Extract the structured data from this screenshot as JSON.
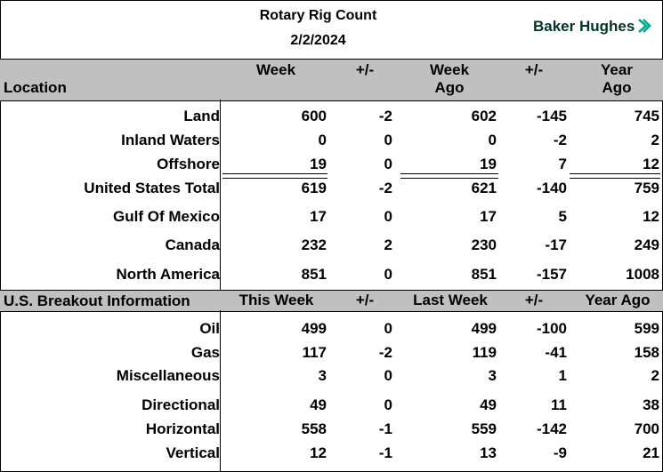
{
  "report": {
    "title": "Rotary Rig Count",
    "date": "2/2/2024",
    "brand": "Baker Hughes"
  },
  "location_section": {
    "headers": {
      "location": "Location",
      "week": "Week",
      "change1": "+/-",
      "week_ago_l1": "Week",
      "week_ago_l2": "Ago",
      "change2": "+/-",
      "year_ago_l1": "Year",
      "year_ago_l2": "Ago"
    },
    "rows": [
      {
        "label": "Land",
        "week": "600",
        "chg1": "-2",
        "week_ago": "602",
        "chg2": "-145",
        "year_ago": "745"
      },
      {
        "label": "Inland Waters",
        "week": "0",
        "chg1": "0",
        "week_ago": "0",
        "chg2": "-2",
        "year_ago": "2"
      },
      {
        "label": "Offshore",
        "week": "19",
        "chg1": "0",
        "week_ago": "19",
        "chg2": "7",
        "year_ago": "12"
      },
      {
        "label": "United States Total",
        "week": "619",
        "chg1": "-2",
        "week_ago": "621",
        "chg2": "-140",
        "year_ago": "759"
      },
      {
        "label": "Gulf Of Mexico",
        "week": "17",
        "chg1": "0",
        "week_ago": "17",
        "chg2": "5",
        "year_ago": "12"
      },
      {
        "label": "Canada",
        "week": "232",
        "chg1": "2",
        "week_ago": "230",
        "chg2": "-17",
        "year_ago": "249"
      },
      {
        "label": "North America",
        "week": "851",
        "chg1": "0",
        "week_ago": "851",
        "chg2": "-157",
        "year_ago": "1008"
      }
    ]
  },
  "breakout_section": {
    "headers": {
      "title": "U.S. Breakout Information",
      "this_week": "This Week",
      "change1": "+/-",
      "last_week": "Last Week",
      "change2": "+/-",
      "year_ago": "Year Ago"
    },
    "rows": [
      {
        "label": "Oil",
        "week": "499",
        "chg1": "0",
        "week_ago": "499",
        "chg2": "-100",
        "year_ago": "599"
      },
      {
        "label": "Gas",
        "week": "117",
        "chg1": "-2",
        "week_ago": "119",
        "chg2": "-41",
        "year_ago": "158"
      },
      {
        "label": "Miscellaneous",
        "week": "3",
        "chg1": "0",
        "week_ago": "3",
        "chg2": "1",
        "year_ago": "2"
      },
      {
        "label": "Directional",
        "week": "49",
        "chg1": "0",
        "week_ago": "49",
        "chg2": "11",
        "year_ago": "38"
      },
      {
        "label": "Horizontal",
        "week": "558",
        "chg1": "-1",
        "week_ago": "559",
        "chg2": "-142",
        "year_ago": "700"
      },
      {
        "label": "Vertical",
        "week": "12",
        "chg1": "-1",
        "week_ago": "13",
        "chg2": "-9",
        "year_ago": "21"
      }
    ]
  },
  "colors": {
    "header_band": "#c0c0c0",
    "brand_text": "#05322b",
    "brand_chevron": "#00a98f"
  }
}
